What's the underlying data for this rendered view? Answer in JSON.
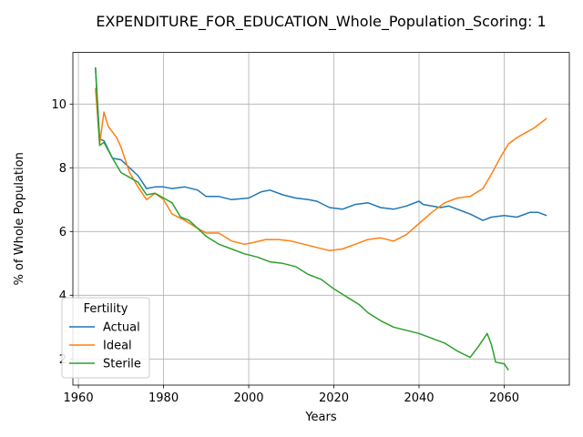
{
  "chart_data": {
    "type": "line",
    "title": "EXPENDITURE_FOR_EDUCATION_Whole_Population_Scoring: 1",
    "xlabel": "Years",
    "ylabel": "% of Whole Population",
    "xlim": [
      1958.7,
      2075.3
    ],
    "ylim": [
      1.18,
      11.62
    ],
    "x_ticks": [
      1960,
      1980,
      2000,
      2020,
      2040,
      2060
    ],
    "y_ticks": [
      2,
      4,
      6,
      8,
      10
    ],
    "grid": true,
    "legend": {
      "title": "Fertility",
      "placement": "lower-left"
    },
    "series": [
      {
        "name": "Actual",
        "color": "#1f77b4",
        "x": [
          1964,
          1965,
          1966,
          1968,
          1970,
          1972,
          1974,
          1976,
          1978,
          1980,
          1982,
          1985,
          1988,
          1990,
          1993,
          1996,
          2000,
          2003,
          2005,
          2008,
          2011,
          2014,
          2016,
          2019,
          2022,
          2025,
          2028,
          2031,
          2034,
          2037,
          2040,
          2041,
          2043,
          2045,
          2047,
          2049,
          2052,
          2055,
          2057,
          2060,
          2063,
          2066,
          2068,
          2070
        ],
        "y": [
          11.15,
          8.9,
          8.85,
          8.3,
          8.25,
          8.0,
          7.75,
          7.35,
          7.4,
          7.4,
          7.35,
          7.4,
          7.3,
          7.1,
          7.1,
          7.0,
          7.05,
          7.25,
          7.3,
          7.15,
          7.05,
          7.0,
          6.95,
          6.75,
          6.7,
          6.85,
          6.9,
          6.75,
          6.7,
          6.8,
          6.95,
          6.85,
          6.8,
          6.75,
          6.8,
          6.7,
          6.55,
          6.35,
          6.45,
          6.5,
          6.45,
          6.6,
          6.6,
          6.5
        ]
      },
      {
        "name": "Ideal",
        "color": "#ff7f0e",
        "x": [
          1964,
          1965,
          1966,
          1967,
          1969,
          1970,
          1972,
          1974,
          1976,
          1978,
          1980,
          1982,
          1985,
          1988,
          1990,
          1993,
          1996,
          1999,
          2001,
          2004,
          2007,
          2010,
          2013,
          2016,
          2019,
          2022,
          2025,
          2028,
          2031,
          2034,
          2037,
          2040,
          2043,
          2046,
          2049,
          2052,
          2055,
          2057,
          2059,
          2061,
          2063,
          2065,
          2067,
          2070
        ],
        "y": [
          10.5,
          8.75,
          9.75,
          9.3,
          8.95,
          8.65,
          7.85,
          7.4,
          7.0,
          7.2,
          7.0,
          6.55,
          6.35,
          6.1,
          5.95,
          5.95,
          5.7,
          5.6,
          5.65,
          5.75,
          5.75,
          5.7,
          5.6,
          5.5,
          5.4,
          5.45,
          5.6,
          5.75,
          5.8,
          5.7,
          5.9,
          6.25,
          6.6,
          6.9,
          7.05,
          7.1,
          7.35,
          7.8,
          8.3,
          8.75,
          8.95,
          9.1,
          9.25,
          9.55
        ]
      },
      {
        "name": "Sterile",
        "color": "#2ca02c",
        "x": [
          1964,
          1965,
          1966,
          1968,
          1970,
          1972,
          1974,
          1976,
          1978,
          1980,
          1982,
          1984,
          1986,
          1988,
          1990,
          1993,
          1996,
          1999,
          2002,
          2005,
          2008,
          2011,
          2014,
          2017,
          2020,
          2023,
          2026,
          2028,
          2031,
          2034,
          2037,
          2040,
          2043,
          2046,
          2049,
          2052,
          2054,
          2056,
          2057,
          2058,
          2060,
          2061
        ],
        "y": [
          11.15,
          8.7,
          8.8,
          8.3,
          7.85,
          7.7,
          7.55,
          7.15,
          7.2,
          7.05,
          6.9,
          6.45,
          6.35,
          6.1,
          5.85,
          5.6,
          5.45,
          5.3,
          5.2,
          5.05,
          5.0,
          4.9,
          4.65,
          4.5,
          4.2,
          3.95,
          3.7,
          3.45,
          3.2,
          3.0,
          2.9,
          2.8,
          2.65,
          2.5,
          2.25,
          2.05,
          2.4,
          2.8,
          2.45,
          1.9,
          1.85,
          1.65
        ]
      }
    ]
  }
}
